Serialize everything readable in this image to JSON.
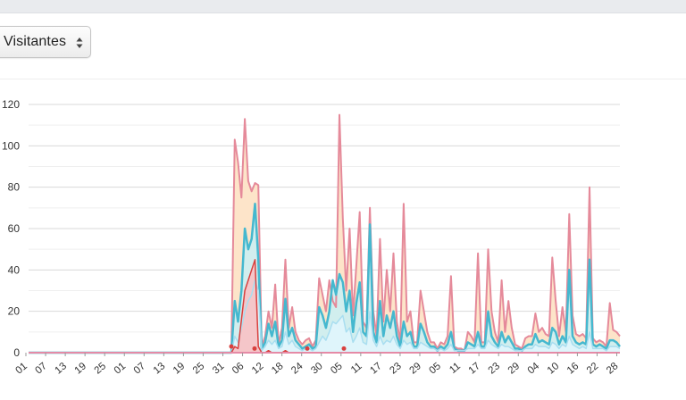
{
  "controls": {
    "metric_select": {
      "selected": "Visitantes"
    }
  },
  "colors": {
    "topbar": "#e9ebee",
    "total_line": "#e58a9a",
    "total_fill": "#fde3c6",
    "visitors_line": "#45b8cf",
    "visitors_fill": "#cfeef0",
    "new_line": "#a9def0",
    "new_fill": "#dff4fb",
    "red_line": "#d9403e",
    "red_fill": "#f6c3c6"
  },
  "chart_data": {
    "type": "area",
    "title": "",
    "xlabel": "",
    "ylabel": "",
    "ylim": [
      0,
      120
    ],
    "yticks": [
      0,
      20,
      40,
      60,
      80,
      100,
      120
    ],
    "grid": true,
    "legend": "none",
    "x_tick_labels": [
      "01",
      "07",
      "13",
      "19",
      "25",
      "01",
      "07",
      "13",
      "19",
      "25",
      "31",
      "06",
      "12",
      "18",
      "24",
      "30",
      "05",
      "11",
      "17",
      "23",
      "29",
      "05",
      "11",
      "17",
      "23",
      "29",
      "04",
      "10",
      "16",
      "22",
      "28"
    ],
    "series": [
      {
        "key": "total",
        "values": [
          0,
          0,
          0,
          0,
          0,
          0,
          0,
          0,
          0,
          0,
          0,
          0,
          0,
          0,
          0,
          0,
          0,
          0,
          0,
          0,
          0,
          0,
          0,
          0,
          0,
          0,
          0,
          0,
          0,
          0,
          0,
          0,
          0,
          0,
          0,
          0,
          0,
          0,
          0,
          0,
          0,
          0,
          0,
          0,
          0,
          0,
          0,
          0,
          0,
          0,
          0,
          0,
          0,
          0,
          0,
          0,
          0,
          0,
          0,
          0,
          0,
          103,
          92,
          75,
          113,
          83,
          78,
          82,
          81,
          3,
          8,
          20,
          12,
          33,
          4,
          12,
          45,
          12,
          22,
          10,
          6,
          4,
          6,
          7,
          3,
          6,
          36,
          28,
          20,
          35,
          25,
          22,
          115,
          65,
          30,
          60,
          18,
          42,
          68,
          15,
          12,
          70,
          20,
          8,
          55,
          15,
          40,
          20,
          48,
          15,
          5,
          72,
          15,
          20,
          5,
          5,
          30,
          20,
          10,
          5,
          5,
          2,
          5,
          4,
          8,
          37,
          3,
          2,
          2,
          1,
          10,
          8,
          5,
          48,
          5,
          5,
          50,
          20,
          10,
          5,
          35,
          10,
          25,
          12,
          4,
          3,
          2,
          7,
          8,
          8,
          19,
          10,
          12,
          9,
          8,
          46,
          25,
          8,
          22,
          10,
          67,
          18,
          9,
          8,
          9,
          7,
          80,
          7,
          5,
          6,
          5,
          3,
          24,
          11,
          10,
          8
        ]
      },
      {
        "key": "visitors",
        "values": [
          0,
          0,
          0,
          0,
          0,
          0,
          0,
          0,
          0,
          0,
          0,
          0,
          0,
          0,
          0,
          0,
          0,
          0,
          0,
          0,
          0,
          0,
          0,
          0,
          0,
          0,
          0,
          0,
          0,
          0,
          0,
          0,
          0,
          0,
          0,
          0,
          0,
          0,
          0,
          0,
          0,
          0,
          0,
          0,
          0,
          0,
          0,
          0,
          0,
          0,
          0,
          0,
          0,
          0,
          0,
          0,
          0,
          0,
          0,
          0,
          0,
          25,
          15,
          30,
          60,
          50,
          55,
          72,
          45,
          2,
          5,
          14,
          8,
          15,
          3,
          6,
          26,
          8,
          12,
          6,
          4,
          2,
          3,
          4,
          2,
          3,
          22,
          18,
          12,
          20,
          35,
          28,
          38,
          34,
          20,
          30,
          10,
          24,
          34,
          10,
          8,
          62,
          10,
          5,
          25,
          8,
          18,
          12,
          20,
          8,
          3,
          15,
          8,
          10,
          3,
          3,
          14,
          10,
          5,
          3,
          3,
          1,
          3,
          2,
          4,
          10,
          2,
          1,
          1,
          1,
          5,
          4,
          3,
          10,
          3,
          3,
          20,
          8,
          5,
          3,
          10,
          5,
          8,
          5,
          2,
          2,
          1,
          3,
          4,
          4,
          9,
          5,
          6,
          5,
          4,
          12,
          10,
          4,
          8,
          5,
          40,
          8,
          5,
          4,
          5,
          4,
          45,
          4,
          3,
          4,
          3,
          2,
          6,
          6,
          5,
          3
        ]
      },
      {
        "key": "new",
        "values": [
          0,
          0,
          0,
          0,
          0,
          0,
          0,
          0,
          0,
          0,
          0,
          0,
          0,
          0,
          0,
          0,
          0,
          0,
          0,
          0,
          0,
          0,
          0,
          0,
          0,
          0,
          0,
          0,
          0,
          0,
          0,
          0,
          0,
          0,
          0,
          0,
          0,
          0,
          0,
          0,
          0,
          0,
          0,
          0,
          0,
          0,
          0,
          0,
          0,
          0,
          0,
          0,
          0,
          0,
          0,
          0,
          0,
          0,
          0,
          0,
          0,
          8,
          5,
          12,
          20,
          25,
          28,
          35,
          30,
          1,
          3,
          6,
          4,
          6,
          2,
          3,
          10,
          4,
          6,
          3,
          2,
          1,
          2,
          2,
          1,
          2,
          5,
          8,
          6,
          10,
          15,
          14,
          16,
          18,
          10,
          12,
          5,
          8,
          12,
          5,
          4,
          20,
          6,
          3,
          8,
          4,
          6,
          5,
          8,
          4,
          2,
          6,
          4,
          5,
          2,
          2,
          5,
          4,
          3,
          2,
          2,
          1,
          2,
          1,
          2,
          4,
          1,
          1,
          1,
          1,
          2,
          2,
          2,
          4,
          2,
          2,
          6,
          4,
          3,
          2,
          4,
          3,
          3,
          2,
          1,
          1,
          1,
          2,
          2,
          2,
          4,
          3,
          3,
          3,
          2,
          5,
          4,
          2,
          4,
          3,
          8,
          4,
          3,
          2,
          3,
          2,
          10,
          2,
          2,
          2,
          2,
          1,
          3,
          3,
          3,
          2
        ]
      },
      {
        "key": "red",
        "values": [
          0,
          0,
          0,
          0,
          0,
          0,
          0,
          0,
          0,
          0,
          0,
          0,
          0,
          0,
          0,
          0,
          0,
          0,
          0,
          0,
          0,
          0,
          0,
          0,
          0,
          0,
          0,
          0,
          0,
          0,
          0,
          0,
          0,
          0,
          0,
          0,
          0,
          0,
          0,
          0,
          0,
          0,
          0,
          0,
          0,
          0,
          0,
          0,
          0,
          0,
          0,
          0,
          0,
          0,
          0,
          0,
          0,
          0,
          0,
          0,
          0,
          3,
          2,
          16,
          30,
          35,
          40,
          45,
          3,
          0,
          0,
          1,
          0,
          0,
          0,
          0,
          1,
          0,
          0,
          0,
          0,
          0,
          0,
          0,
          0,
          0,
          0,
          0,
          0,
          0,
          0,
          0,
          0,
          0,
          0,
          0,
          0,
          0,
          0,
          0,
          0,
          0,
          0,
          0,
          0,
          0,
          0,
          0,
          0,
          0,
          0,
          0,
          0,
          0,
          0,
          0,
          0,
          0,
          0,
          0,
          0,
          0,
          0,
          0,
          0,
          0,
          0,
          0,
          0,
          0,
          0,
          0,
          0,
          0,
          0,
          0,
          0,
          0,
          0,
          0,
          0,
          0,
          0,
          0,
          0,
          0,
          0,
          0,
          0,
          0,
          0,
          0,
          0,
          0,
          0,
          0,
          0,
          0,
          0,
          0,
          0,
          0,
          0,
          0,
          0,
          0,
          0,
          0,
          0,
          0,
          0,
          0,
          0,
          0,
          0,
          0
        ]
      }
    ]
  }
}
